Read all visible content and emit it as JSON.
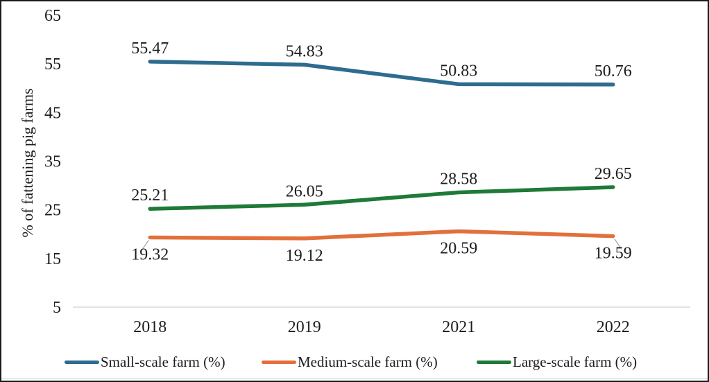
{
  "figure": {
    "background": "#ffffff",
    "border_color": "#1a1a1a",
    "text_color": "#1c1c1c",
    "axis_line_color": "#c4c4c4",
    "leader_line_color": "#a9a9a9"
  },
  "chart_data": {
    "type": "line",
    "title": "",
    "xlabel": "",
    "ylabel": "% of fattening pig farms",
    "categories": [
      "2018",
      "2019",
      "2021",
      "2022"
    ],
    "y_ticks": [
      65,
      55,
      45,
      35,
      25,
      15,
      5
    ],
    "ylim": [
      5,
      65
    ],
    "grid": false,
    "data_labels": true,
    "legend_position": "bottom",
    "series": [
      {
        "name": "Small-scale farm (%)",
        "color": "#2e6c8f",
        "values": [
          55.47,
          54.83,
          50.83,
          50.76
        ],
        "label_side": "above",
        "leader_points": []
      },
      {
        "name": "Medium-scale farm (%)",
        "color": "#e2703a",
        "values": [
          19.32,
          19.12,
          20.59,
          19.59
        ],
        "label_side": "below",
        "leader_points": [
          0,
          3
        ]
      },
      {
        "name": "Large-scale farm (%)",
        "color": "#1f7a38",
        "values": [
          25.21,
          26.05,
          28.58,
          29.65
        ],
        "label_side": "above",
        "leader_points": []
      }
    ]
  }
}
